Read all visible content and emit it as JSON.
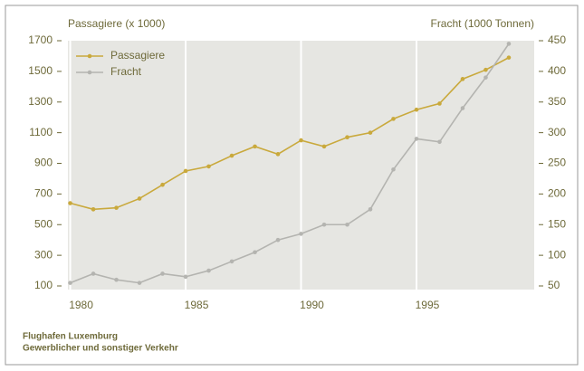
{
  "chart_data": {
    "type": "line",
    "ylabel": "Passagiere (x 1000)",
    "y2label": "Fracht (1000 Tonnen)",
    "x": [
      1980,
      1981,
      1982,
      1983,
      1984,
      1985,
      1986,
      1987,
      1988,
      1989,
      1990,
      1991,
      1992,
      1993,
      1994,
      1995,
      1996,
      1997,
      1998,
      1999
    ],
    "xlim": [
      1979.9,
      2000.1
    ],
    "xticks": [
      1980,
      1985,
      1990,
      1995
    ],
    "ylim": [
      100,
      1700
    ],
    "yticks": [
      100,
      300,
      500,
      700,
      900,
      1100,
      1300,
      1500,
      1700
    ],
    "y2lim": [
      50,
      450
    ],
    "y2ticks": [
      50,
      100,
      150,
      200,
      250,
      300,
      350,
      400,
      450
    ],
    "grid": true,
    "legend": "upper left",
    "series": [
      {
        "name": "Passagiere",
        "color": "#c9a93c",
        "values": [
          640,
          600,
          610,
          670,
          760,
          850,
          880,
          950,
          1010,
          960,
          1050,
          1010,
          1070,
          1100,
          1190,
          1250,
          1290,
          1450,
          1510,
          1590
        ]
      },
      {
        "name": "Fracht",
        "color": "#b4b4b0",
        "axis": "y2",
        "values": [
          55,
          70,
          60,
          55,
          70,
          65,
          75,
          90,
          105,
          125,
          135,
          150,
          150,
          175,
          240,
          290,
          285,
          340,
          390,
          445
        ]
      }
    ],
    "notes": [
      "Flughafen Luxemburg",
      "Gewerblicher und sonstiger Verkehr"
    ]
  }
}
